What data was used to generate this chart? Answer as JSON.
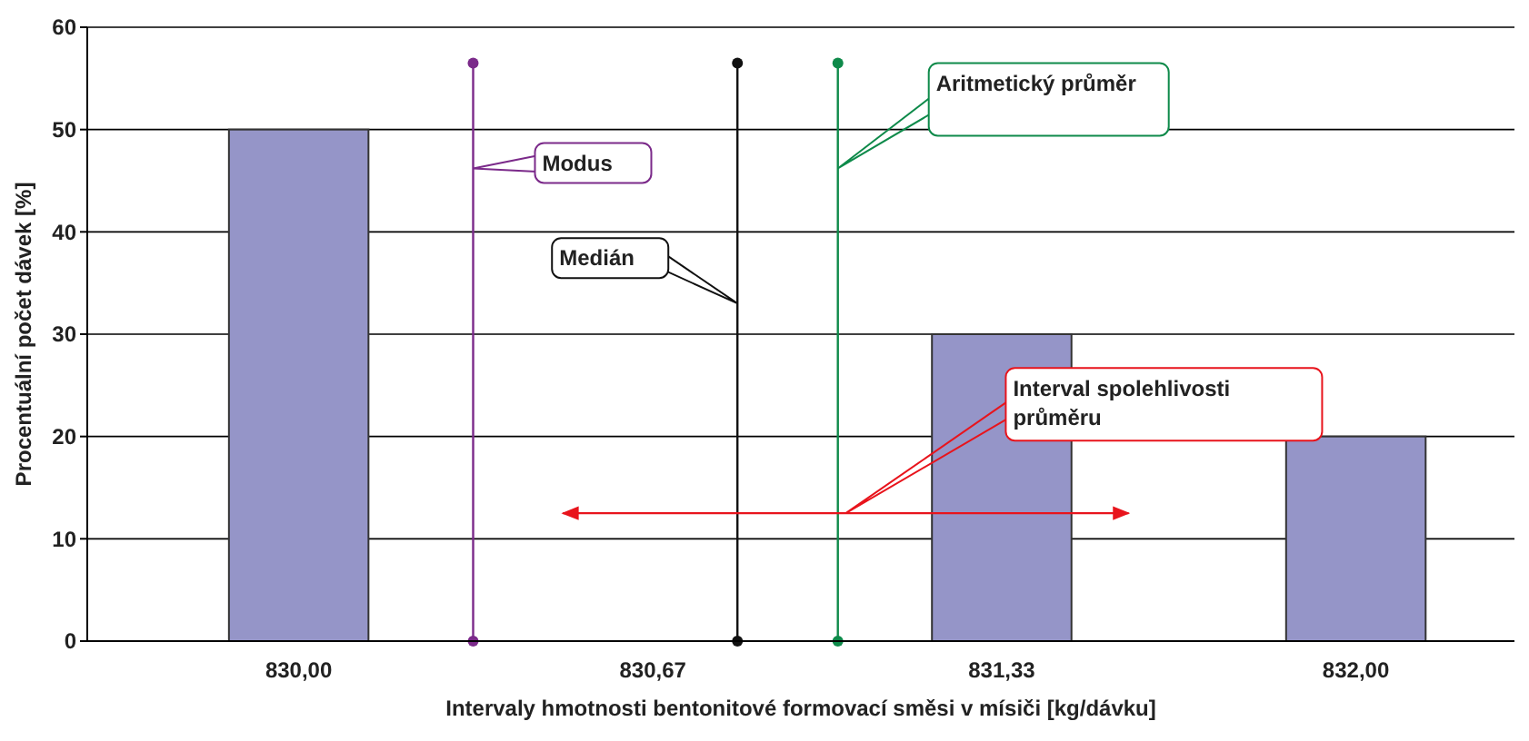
{
  "chart_data": {
    "type": "bar",
    "xlabel": "Intervaly hmotnosti bentonitové formovací směsi v mísiči [kg/dávku]",
    "ylabel": "Procentuální počet dávek [%]",
    "xlim": [
      829.6,
      832.3
    ],
    "xticks": [
      {
        "value": 830,
        "label": "830,00"
      },
      {
        "value": 830.67,
        "label": "830,67"
      },
      {
        "value": 831.33,
        "label": "831,33"
      },
      {
        "value": 832,
        "label": "832,00"
      }
    ],
    "ylim": [
      0,
      60
    ],
    "yticks": [
      0,
      10,
      20,
      30,
      40,
      50,
      60
    ],
    "grid": "y",
    "series": [
      {
        "color": "#9595c8",
        "x": [
          830,
          830.67,
          831.33,
          832
        ],
        "values": [
          50,
          0,
          30,
          20
        ]
      },
      {
        "type": "line",
        "name": "Modus",
        "color": "#7b2a8a",
        "marker": "circle",
        "x": [
          830.33,
          830.33
        ],
        "values": [
          0,
          56.5
        ]
      },
      {
        "type": "line",
        "name": "Medián",
        "color": "#111111",
        "marker": "circle",
        "x": [
          830.83,
          830.83
        ],
        "values": [
          0,
          56.5
        ]
      },
      {
        "type": "line",
        "name": "Aritmetický průměr",
        "color": "#0e8a4a",
        "marker": "circle",
        "x": [
          831.02,
          831.02
        ],
        "values": [
          0,
          56.5
        ]
      },
      {
        "type": "line",
        "name": "Interval spolehlivosti průměru",
        "color": "#e8141c",
        "x": [
          830.5,
          831.57
        ],
        "values": [
          12.5,
          12.5
        ]
      }
    ]
  }
}
